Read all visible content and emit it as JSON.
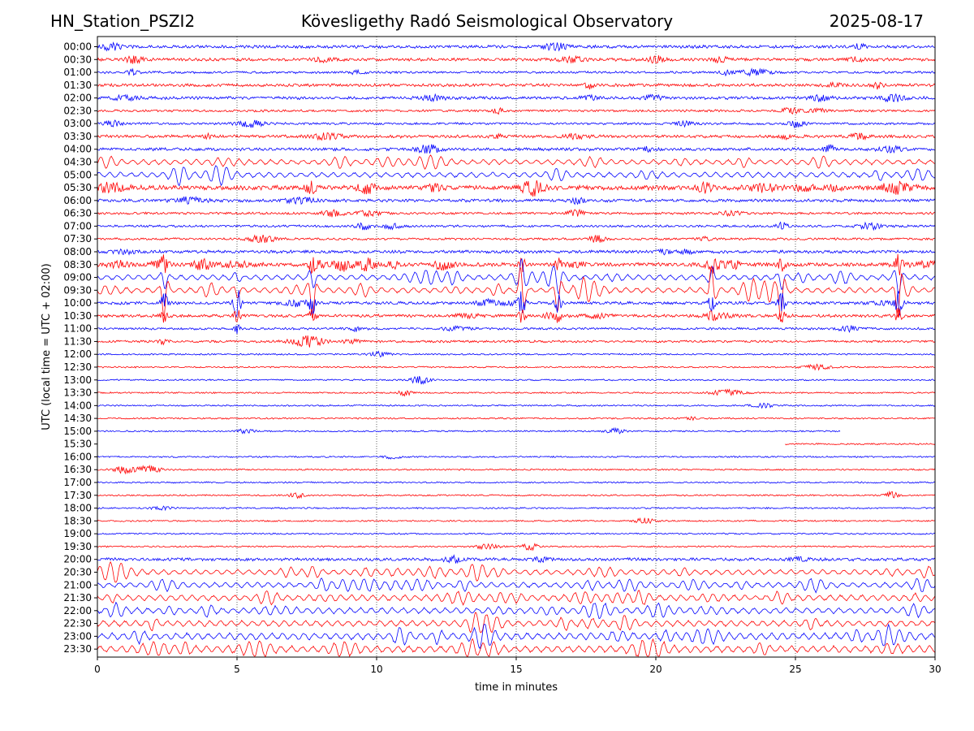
{
  "header": {
    "station": "HN_Station_PSZI2",
    "title": "Kövesligethy Radó Seismological Observatory",
    "date": "2025-08-17"
  },
  "chart_data": {
    "type": "line",
    "title": "Kövesligethy Radó Seismological Observatory",
    "xlabel": "time in minutes",
    "ylabel": "UTC (local time = UTC + 02:00)",
    "xlim": [
      0,
      30
    ],
    "x_ticks": [
      0,
      5,
      10,
      15,
      20,
      25,
      30
    ],
    "x_tick_labels": [
      "0",
      "5",
      "10",
      "15",
      "20",
      "25",
      "30"
    ],
    "grid": "vertical dotted at each 5 minutes",
    "colors": {
      "even_rows": "#0000ff",
      "odd_rows": "#ff0000"
    },
    "row_labels": [
      "00:00",
      "00:30",
      "01:00",
      "01:30",
      "02:00",
      "02:30",
      "03:00",
      "03:30",
      "04:00",
      "04:30",
      "05:00",
      "05:30",
      "06:00",
      "06:30",
      "07:00",
      "07:30",
      "08:00",
      "08:30",
      "09:00",
      "09:30",
      "10:00",
      "10:30",
      "11:00",
      "11:30",
      "12:00",
      "12:30",
      "13:00",
      "13:30",
      "14:00",
      "14:30",
      "15:00",
      "15:30",
      "16:00",
      "16:30",
      "17:00",
      "17:30",
      "18:00",
      "18:30",
      "19:00",
      "19:30",
      "20:00",
      "20:30",
      "21:00",
      "21:30",
      "22:00",
      "22:30",
      "23:00",
      "23:30"
    ],
    "row_activity": [
      3,
      3,
      2,
      3,
      3,
      2,
      2,
      3,
      3,
      6,
      6,
      5,
      3,
      2,
      2,
      2,
      3,
      4,
      6,
      6,
      3,
      3,
      2,
      2,
      1,
      1,
      1,
      1,
      1,
      1,
      1,
      1,
      1,
      1,
      1,
      1,
      1,
      1,
      1,
      1,
      3,
      6,
      6,
      7,
      7,
      7,
      8,
      8
    ],
    "data_gap": {
      "start_row": "15:00",
      "gap_start_min": 26.6,
      "end_row": "15:30",
      "gap_end_min": 24.6
    },
    "events": [
      {
        "min": 2.4,
        "row": "09:30",
        "amplitude": 3.5
      },
      {
        "min": 5.0,
        "row": "10:00",
        "amplitude": 2.2
      },
      {
        "min": 7.7,
        "row": "09:30",
        "amplitude": 3.5
      },
      {
        "min": 15.2,
        "row": "09:30",
        "amplitude": 3.8
      },
      {
        "min": 16.5,
        "row": "09:30",
        "amplitude": 3.0
      },
      {
        "min": 22.0,
        "row": "09:30",
        "amplitude": 3.0
      },
      {
        "min": 24.5,
        "row": "09:30",
        "amplitude": 3.6
      },
      {
        "min": 28.7,
        "row": "09:30",
        "amplitude": 4.0
      }
    ]
  }
}
